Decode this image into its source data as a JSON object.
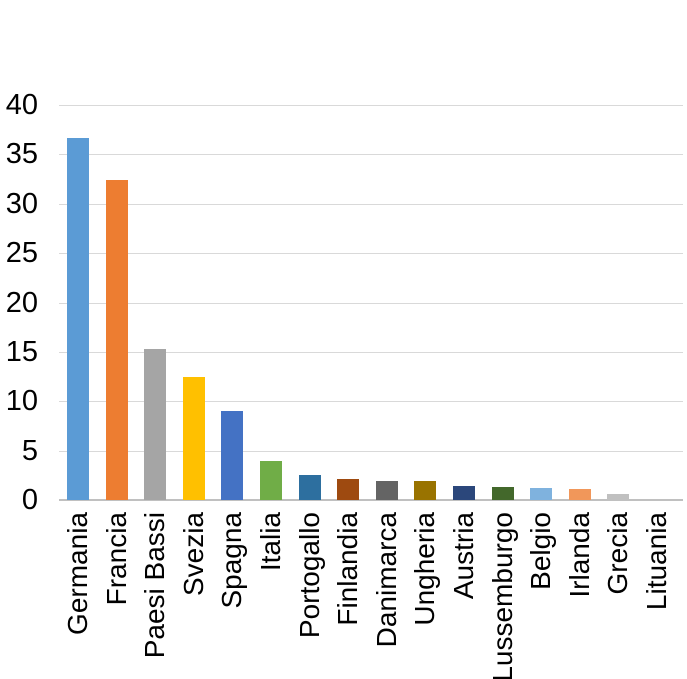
{
  "chart_data": {
    "type": "bar",
    "title": "",
    "xlabel": "",
    "ylabel": "",
    "categories": [
      "Germania",
      "Francia",
      "Paesi Bassi",
      "Svezia",
      "Spagna",
      "Italia",
      "Portogallo",
      "Finlandia",
      "Danimarca",
      "Ungheria",
      "Austria",
      "Lussemburgo",
      "Belgio",
      "Irlanda",
      "Grecia",
      "Lituania"
    ],
    "values": [
      36.7,
      32.4,
      15.3,
      12.5,
      9.0,
      3.9,
      2.5,
      2.1,
      1.9,
      1.9,
      1.4,
      1.3,
      1.2,
      1.1,
      0.6,
      0
    ],
    "bar_colors": [
      "#5B9BD5",
      "#ED7D31",
      "#A5A5A5",
      "#FFC000",
      "#4472C4",
      "#70AD47",
      "#2D6F9F",
      "#9E4A10",
      "#646464",
      "#997300",
      "#2B477B",
      "#43682B",
      "#7FB2DE",
      "#F1975A",
      "#C0C0C0",
      "#FFD966"
    ],
    "ylim": [
      0,
      40
    ],
    "yticks": [
      0,
      5,
      10,
      15,
      20,
      25,
      30,
      35,
      40
    ],
    "grid": true,
    "legend": "none",
    "gridline_color": "#D9D9D9",
    "axis_line_color": "#C0C0C0",
    "text_color": "#000000",
    "background_color": "#FFFFFF",
    "x_labels_rotation_deg": 90
  }
}
